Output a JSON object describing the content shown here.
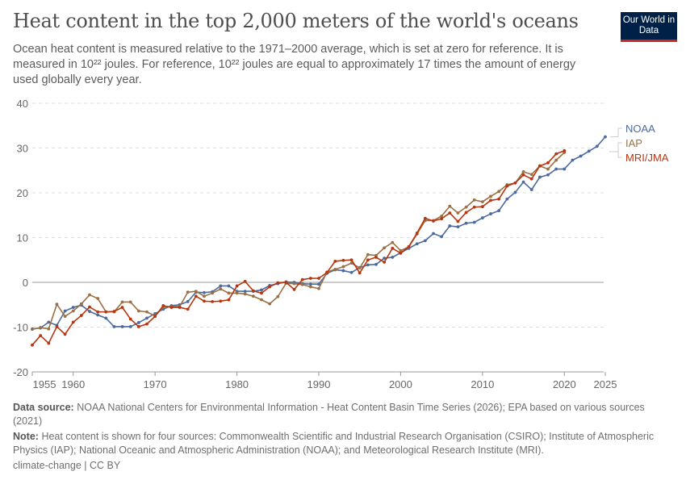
{
  "title": "Heat content in the top 2,000 meters of the world's oceans",
  "subtitle": "Ocean heat content is measured relative to the 1971–2000 average, which is set at zero for reference. It is measured in 10²² joules. For reference, 10²² joules are equal to approximately 17 times the amount of energy used globally every year.",
  "logo": "Our World in Data",
  "footer": {
    "source_label": "Data source:",
    "source": "NOAA National Centers for Environmental Information - Heat Content Basin Time Series (2026); EPA based on various sources (2021)",
    "note_label": "Note:",
    "note": "Heat content is shown for four sources: Commonwealth Scientific and Industrial Research Organisation (CSIRO); Institute of Atmospheric Physics (IAP); National Oceanic and Atmospheric Administration (NOAA); and Meteorological Research Institute (MRI).",
    "license": "climate-change | CC BY"
  },
  "chart_data": {
    "type": "line",
    "ylim": [
      -20,
      40
    ],
    "yticks": [
      -20,
      -10,
      0,
      10,
      20,
      30,
      40
    ],
    "xlim": [
      1955,
      2025
    ],
    "xticks": [
      1955,
      1960,
      1970,
      1980,
      1990,
      2000,
      2010,
      2020,
      2025
    ],
    "grid": "horizontal dashed",
    "legend": "right, inline labels",
    "series": [
      {
        "name": "NOAA",
        "color": "#4c6a9c",
        "start": 1955,
        "values": [
          -10.4,
          -10.2,
          -8.9,
          -9.6,
          -6.4,
          -5.6,
          -5.1,
          -6.5,
          -7.3,
          -8.0,
          -9.9,
          -9.9,
          -9.9,
          -9.0,
          -8.0,
          -7.0,
          -6.0,
          -5.2,
          -5.0,
          -4.3,
          -2.2,
          -2.3,
          -2.1,
          -0.8,
          -0.8,
          -2.0,
          -2.0,
          -2.0,
          -1.7,
          -0.7,
          -0.3,
          0.1,
          0.0,
          -0.3,
          -0.4,
          -0.4,
          2.0,
          2.8,
          2.6,
          2.2,
          3.3,
          3.9,
          4.0,
          5.4,
          5.6,
          6.6,
          7.6,
          8.6,
          9.3,
          10.9,
          10.2,
          12.6,
          12.4,
          13.2,
          13.4,
          14.4,
          15.3,
          16.0,
          18.6,
          20.1,
          22.4,
          20.7,
          23.5,
          24.0,
          25.3,
          25.3,
          27.3,
          28.2,
          29.3,
          30.4,
          32.5
        ]
      },
      {
        "name": "IAP",
        "color": "#9a7044",
        "start": 1955,
        "values": [
          -10.5,
          -10.1,
          -10.4,
          -4.9,
          -7.6,
          -6.4,
          -4.8,
          -2.8,
          -3.6,
          -6.6,
          -6.6,
          -4.4,
          -4.4,
          -6.4,
          -6.6,
          -7.5,
          -5.5,
          -5.4,
          -5.4,
          -2.2,
          -2.0,
          -3.1,
          -2.4,
          -1.5,
          -2.4,
          -2.4,
          -2.6,
          -3.1,
          -3.9,
          -4.8,
          -3.2,
          -0.2,
          -0.3,
          -0.5,
          -1.0,
          -1.4,
          2.3,
          2.9,
          3.5,
          4.3,
          3.2,
          6.2,
          6.0,
          7.7,
          8.9,
          7.1,
          7.9,
          10.8,
          13.8,
          13.8,
          14.8,
          17.0,
          15.5,
          16.8,
          18.4,
          18.0,
          19.2,
          20.3,
          21.8,
          22.2,
          24.7,
          24.1,
          26.0,
          25.3,
          27.3,
          29.0
        ]
      },
      {
        "name": "MRI/JMA",
        "color": "#b8360f",
        "start": 1955,
        "values": [
          -14.0,
          -11.9,
          -13.6,
          -9.9,
          -11.6,
          -8.9,
          -7.4,
          -5.5,
          -6.6,
          -6.6,
          -6.5,
          -5.6,
          -8.2,
          -9.9,
          -9.3,
          -7.6,
          -5.2,
          -5.6,
          -5.6,
          -6.0,
          -3.1,
          -4.2,
          -4.3,
          -4.2,
          -3.9,
          -0.8,
          0.2,
          -1.9,
          -2.4,
          -1.0,
          -0.1,
          0.0,
          -1.6,
          0.6,
          0.9,
          0.9,
          2.2,
          4.7,
          4.9,
          5.0,
          2.1,
          5.0,
          5.6,
          4.5,
          7.6,
          6.5,
          8.0,
          11.0,
          14.3,
          13.7,
          14.2,
          15.5,
          13.6,
          15.6,
          16.8,
          16.9,
          18.3,
          18.6,
          21.5,
          22.2,
          24.0,
          23.1,
          26.0,
          26.7,
          28.7,
          29.4
        ]
      }
    ]
  }
}
